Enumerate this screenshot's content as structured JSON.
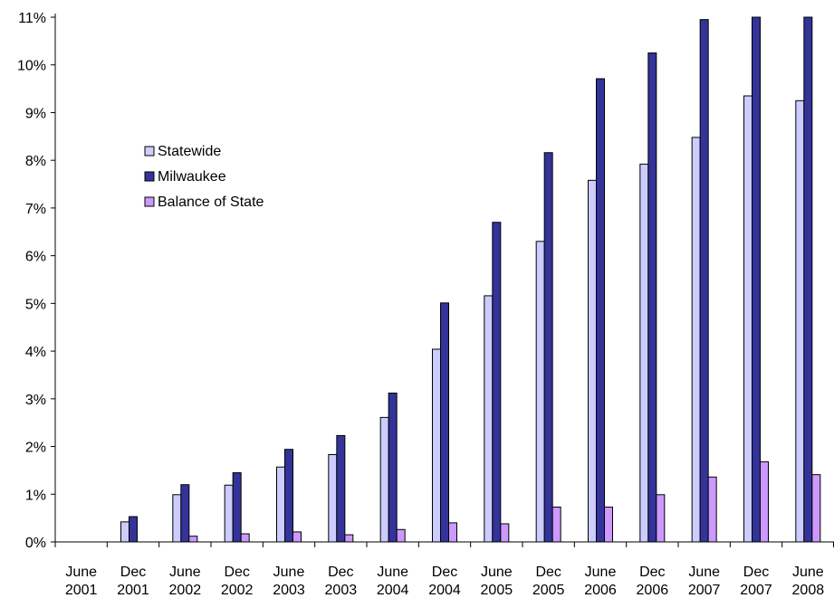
{
  "chart_data": {
    "type": "bar",
    "title": "",
    "xlabel": "",
    "ylabel": "",
    "ylim": [
      0,
      11
    ],
    "y_ticks": [
      "0%",
      "1%",
      "2%",
      "3%",
      "4%",
      "5%",
      "6%",
      "7%",
      "8%",
      "9%",
      "10%",
      "11%"
    ],
    "grid": false,
    "legend_position": "upper-left",
    "categories": [
      [
        "June",
        "2001"
      ],
      [
        "Dec",
        "2001"
      ],
      [
        "June",
        "2002"
      ],
      [
        "Dec",
        "2002"
      ],
      [
        "June",
        "2003"
      ],
      [
        "Dec",
        "2003"
      ],
      [
        "June",
        "2004"
      ],
      [
        "Dec",
        "2004"
      ],
      [
        "June",
        "2005"
      ],
      [
        "Dec",
        "2005"
      ],
      [
        "June",
        "2006"
      ],
      [
        "Dec",
        "2006"
      ],
      [
        "June",
        "2007"
      ],
      [
        "Dec",
        "2007"
      ],
      [
        "June",
        "2008"
      ]
    ],
    "series": [
      {
        "name": "Statewide",
        "color": "#ccccff",
        "values": [
          0,
          0.42,
          0.99,
          1.19,
          1.57,
          1.83,
          2.61,
          4.04,
          5.16,
          6.3,
          7.58,
          7.92,
          8.48,
          9.35,
          9.25
        ]
      },
      {
        "name": "Milwaukee",
        "color": "#333399",
        "values": [
          0,
          0.53,
          1.2,
          1.45,
          1.94,
          2.23,
          3.12,
          5.01,
          6.7,
          8.16,
          9.71,
          10.25,
          10.95,
          11.0,
          11.0
        ]
      },
      {
        "name": "Balance of State",
        "color": "#cc99ff",
        "values": [
          0,
          0,
          0.12,
          0.17,
          0.21,
          0.15,
          0.26,
          0.4,
          0.38,
          0.73,
          0.73,
          0.99,
          1.36,
          1.68,
          1.41
        ]
      }
    ]
  }
}
